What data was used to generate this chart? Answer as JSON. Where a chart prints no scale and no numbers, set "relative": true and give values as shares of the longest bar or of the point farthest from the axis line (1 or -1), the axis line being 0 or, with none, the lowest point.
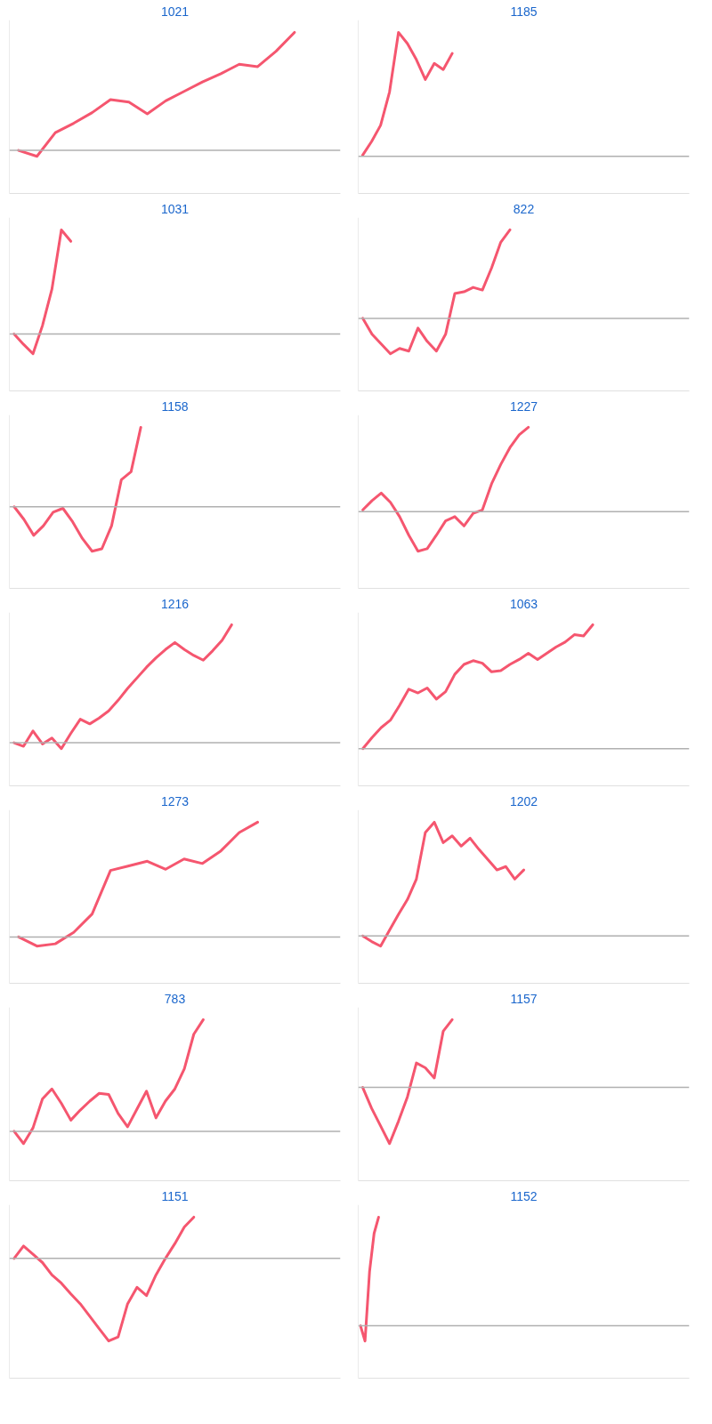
{
  "chart_data": [
    {
      "type": "line",
      "title": "1021",
      "relative": true,
      "color": "#f5566f",
      "categories": [
        null,
        null,
        null,
        null,
        null,
        null,
        null,
        null,
        null,
        null,
        null,
        null,
        null,
        null,
        null,
        null,
        null,
        null
      ],
      "values": [
        0,
        -0.05,
        0.15,
        0.23,
        0.32,
        0.43,
        0.41,
        0.31,
        0.42,
        0.5,
        0.58,
        0.65,
        0.73,
        0.71,
        0.84,
        1.0,
        null,
        null
      ]
    },
    {
      "type": "line",
      "title": "1185",
      "relative": true,
      "color": "#f5566f",
      "categories": [
        null,
        null,
        null,
        null,
        null,
        null,
        null,
        null,
        null,
        null,
        null,
        null,
        null,
        null,
        null,
        null,
        null,
        null,
        null,
        null,
        null,
        null,
        null,
        null,
        null,
        null,
        null,
        null,
        null,
        null,
        null,
        null,
        null,
        null,
        null,
        null,
        null
      ],
      "values": [
        0.01,
        0.12,
        0.25,
        0.52,
        1.0,
        0.91,
        0.78,
        0.62,
        0.75,
        0.7,
        0.83,
        null,
        null,
        null,
        null,
        null,
        null,
        null,
        null,
        null,
        null,
        null,
        null,
        null,
        null,
        null,
        null,
        null,
        null,
        null,
        null,
        null,
        null,
        null,
        null,
        null,
        null
      ]
    },
    {
      "type": "line",
      "title": "1031",
      "relative": true,
      "color": "#f5566f",
      "categories": [
        null,
        null,
        null,
        null,
        null,
        null,
        null,
        null,
        null,
        null,
        null,
        null,
        null,
        null,
        null,
        null,
        null,
        null,
        null,
        null,
        null,
        null,
        null,
        null,
        null,
        null,
        null,
        null,
        null,
        null,
        null,
        null,
        null,
        null,
        null
      ],
      "values": [
        0,
        -0.1,
        -0.19,
        0.08,
        0.43,
        1.0,
        0.89,
        null,
        null,
        null,
        null,
        null,
        null,
        null,
        null,
        null,
        null,
        null,
        null,
        null,
        null,
        null,
        null,
        null,
        null,
        null,
        null,
        null,
        null,
        null,
        null,
        null,
        null,
        null,
        null
      ]
    },
    {
      "type": "line",
      "title": "822",
      "relative": true,
      "color": "#f5566f",
      "categories": [
        null,
        null,
        null,
        null,
        null,
        null,
        null,
        null,
        null,
        null,
        null,
        null,
        null,
        null,
        null,
        null,
        null,
        null,
        null,
        null,
        null,
        null,
        null,
        null,
        null,
        null,
        null,
        null,
        null,
        null,
        null,
        null,
        null,
        null,
        null,
        null
      ],
      "values": [
        0,
        -0.18,
        -0.29,
        -0.4,
        -0.34,
        -0.37,
        -0.11,
        -0.26,
        -0.37,
        -0.18,
        0.28,
        0.3,
        0.35,
        0.32,
        0.57,
        0.86,
        1.0,
        null,
        null,
        null,
        null,
        null,
        null,
        null,
        null,
        null,
        null,
        null,
        null,
        null,
        null,
        null,
        null,
        null,
        null,
        null
      ]
    },
    {
      "type": "line",
      "title": "1158",
      "relative": true,
      "color": "#f5566f",
      "categories": [
        null,
        null,
        null,
        null,
        null,
        null,
        null,
        null,
        null,
        null,
        null,
        null,
        null,
        null,
        null,
        null,
        null,
        null,
        null,
        null,
        null,
        null,
        null,
        null,
        null,
        null,
        null,
        null,
        null,
        null,
        null,
        null,
        null,
        null
      ],
      "values": [
        0,
        -0.16,
        -0.36,
        -0.24,
        -0.07,
        -0.02,
        -0.19,
        -0.4,
        -0.56,
        -0.53,
        -0.24,
        0.34,
        0.44,
        1.0,
        null,
        null,
        null,
        null,
        null,
        null,
        null,
        null,
        null,
        null,
        null,
        null,
        null,
        null,
        null,
        null,
        null,
        null,
        null,
        null
      ]
    },
    {
      "type": "line",
      "title": "1227",
      "relative": true,
      "color": "#f5566f",
      "categories": [
        null,
        null,
        null,
        null,
        null,
        null,
        null,
        null,
        null,
        null,
        null,
        null,
        null,
        null,
        null,
        null,
        null,
        null,
        null,
        null,
        null,
        null,
        null,
        null,
        null,
        null,
        null,
        null,
        null,
        null,
        null,
        null,
        null,
        null,
        null,
        null
      ],
      "values": [
        0.02,
        0.13,
        0.22,
        0.11,
        -0.06,
        -0.28,
        -0.47,
        -0.44,
        -0.28,
        -0.11,
        -0.06,
        -0.17,
        -0.02,
        0.02,
        0.33,
        0.56,
        0.76,
        0.91,
        1.0,
        null,
        null,
        null,
        null,
        null,
        null,
        null,
        null,
        null,
        null,
        null,
        null,
        null,
        null,
        null,
        null,
        null
      ]
    },
    {
      "type": "line",
      "title": "1216",
      "relative": true,
      "color": "#f5566f",
      "categories": [
        null,
        null,
        null,
        null,
        null,
        null,
        null,
        null,
        null,
        null,
        null,
        null,
        null,
        null,
        null,
        null,
        null,
        null,
        null,
        null,
        null,
        null,
        null,
        null,
        null,
        null,
        null,
        null,
        null,
        null,
        null,
        null,
        null,
        null,
        null
      ],
      "values": [
        0,
        -0.03,
        0.1,
        -0.01,
        0.04,
        -0.05,
        0.08,
        0.2,
        0.16,
        0.21,
        0.27,
        0.36,
        0.46,
        0.55,
        0.64,
        0.72,
        0.79,
        0.85,
        0.79,
        0.74,
        0.7,
        0.78,
        0.87,
        1.0,
        null,
        null,
        null,
        null,
        null,
        null,
        null,
        null,
        null,
        null,
        null
      ]
    },
    {
      "type": "line",
      "title": "1063",
      "relative": true,
      "color": "#f5566f",
      "categories": [
        null,
        null,
        null,
        null,
        null,
        null,
        null,
        null,
        null,
        null,
        null,
        null,
        null,
        null,
        null,
        null,
        null,
        null,
        null,
        null,
        null,
        null,
        null,
        null,
        null,
        null,
        null,
        null,
        null,
        null,
        null,
        null,
        null,
        null,
        null,
        null
      ],
      "values": [
        0,
        0.09,
        0.17,
        0.23,
        0.35,
        0.48,
        0.45,
        0.49,
        0.4,
        0.46,
        0.6,
        0.68,
        0.71,
        0.69,
        0.62,
        0.63,
        0.68,
        0.72,
        0.77,
        0.72,
        0.77,
        0.82,
        0.86,
        0.92,
        0.91,
        1.0,
        null,
        null,
        null,
        null,
        null,
        null,
        null,
        null,
        null,
        null
      ]
    },
    {
      "type": "line",
      "title": "1273",
      "relative": true,
      "color": "#f5566f",
      "categories": [
        null,
        null,
        null,
        null,
        null,
        null,
        null,
        null,
        null,
        null,
        null,
        null,
        null,
        null,
        null,
        null,
        null,
        null
      ],
      "values": [
        0,
        -0.08,
        -0.06,
        0.04,
        0.2,
        0.58,
        0.62,
        0.66,
        0.59,
        0.68,
        0.64,
        0.75,
        0.91,
        1.0,
        null,
        null,
        null,
        null
      ]
    },
    {
      "type": "line",
      "title": "1202",
      "relative": true,
      "color": "#f5566f",
      "categories": [
        null,
        null,
        null,
        null,
        null,
        null,
        null,
        null,
        null,
        null,
        null,
        null,
        null,
        null,
        null,
        null,
        null,
        null,
        null,
        null,
        null,
        null,
        null,
        null,
        null,
        null,
        null,
        null,
        null,
        null,
        null,
        null,
        null,
        null,
        null,
        null,
        null
      ],
      "values": [
        0,
        -0.05,
        -0.09,
        0.05,
        0.19,
        0.32,
        0.5,
        0.91,
        1.0,
        0.82,
        0.88,
        0.79,
        0.86,
        0.76,
        0.67,
        0.58,
        0.61,
        0.5,
        0.58,
        null,
        null,
        null,
        null,
        null,
        null,
        null,
        null,
        null,
        null,
        null,
        null,
        null,
        null,
        null,
        null,
        null,
        null
      ]
    },
    {
      "type": "line",
      "title": "783",
      "relative": true,
      "color": "#f5566f",
      "categories": [
        null,
        null,
        null,
        null,
        null,
        null,
        null,
        null,
        null,
        null,
        null,
        null,
        null,
        null,
        null,
        null,
        null,
        null,
        null,
        null,
        null,
        null,
        null,
        null,
        null,
        null,
        null,
        null,
        null,
        null,
        null,
        null,
        null,
        null,
        null
      ],
      "values": [
        0,
        -0.11,
        0.03,
        0.29,
        0.38,
        0.25,
        0.1,
        0.19,
        0.27,
        0.34,
        0.33,
        0.16,
        0.04,
        0.2,
        0.36,
        0.12,
        0.27,
        0.38,
        0.56,
        0.87,
        1.0,
        null,
        null,
        null,
        null,
        null,
        null,
        null,
        null,
        null,
        null,
        null,
        null,
        null,
        null
      ]
    },
    {
      "type": "line",
      "title": "1157",
      "relative": true,
      "color": "#f5566f",
      "categories": [
        null,
        null,
        null,
        null,
        null,
        null,
        null,
        null,
        null,
        null,
        null,
        null,
        null,
        null,
        null,
        null,
        null,
        null,
        null,
        null,
        null,
        null,
        null,
        null,
        null,
        null,
        null,
        null,
        null,
        null,
        null,
        null,
        null,
        null,
        null,
        null,
        null
      ],
      "values": [
        0,
        -0.31,
        -0.57,
        -0.83,
        -0.5,
        -0.14,
        0.36,
        0.29,
        0.14,
        0.83,
        1.0,
        null,
        null,
        null,
        null,
        null,
        null,
        null,
        null,
        null,
        null,
        null,
        null,
        null,
        null,
        null,
        null,
        null,
        null,
        null,
        null,
        null,
        null,
        null,
        null,
        null,
        null
      ]
    },
    {
      "type": "line",
      "title": "1151",
      "relative": true,
      "color": "#f5566f",
      "categories": [
        null,
        null,
        null,
        null,
        null,
        null,
        null,
        null,
        null,
        null,
        null,
        null,
        null,
        null,
        null,
        null,
        null,
        null,
        null,
        null,
        null,
        null,
        null,
        null,
        null,
        null,
        null,
        null,
        null,
        null,
        null,
        null,
        null,
        null,
        null
      ],
      "values": [
        0,
        0.15,
        0.05,
        -0.05,
        -0.2,
        -0.3,
        -0.43,
        -0.55,
        -0.7,
        -0.85,
        -1.0,
        -0.95,
        -0.55,
        -0.35,
        -0.45,
        -0.2,
        0,
        0.18,
        0.38,
        0.5,
        null,
        null,
        null,
        null,
        null,
        null,
        null,
        null,
        null,
        null,
        null,
        null,
        null,
        null,
        null
      ]
    },
    {
      "type": "line",
      "title": "1152",
      "relative": true,
      "color": "#f5566f",
      "categories": [
        null,
        null,
        null,
        null,
        null,
        null,
        null,
        null,
        null,
        null,
        null,
        null,
        null,
        null,
        null,
        null,
        null,
        null,
        null,
        null,
        null,
        null,
        null,
        null,
        null,
        null,
        null,
        null,
        null,
        null,
        null,
        null,
        null,
        null,
        null,
        null,
        null,
        null,
        null,
        null,
        null,
        null,
        null,
        null,
        null,
        null,
        null,
        null,
        null,
        null,
        null,
        null,
        null,
        null,
        null,
        null,
        null,
        null,
        null,
        null,
        null,
        null,
        null,
        null,
        null,
        null,
        null,
        null,
        null,
        null,
        null,
        null,
        null
      ],
      "values": [
        0,
        -0.14,
        0.5,
        0.85,
        1.0,
        null,
        null,
        null,
        null,
        null,
        null,
        null,
        null,
        null,
        null,
        null,
        null,
        null,
        null,
        null,
        null,
        null,
        null,
        null,
        null,
        null,
        null,
        null,
        null,
        null,
        null,
        null,
        null,
        null,
        null,
        null,
        null,
        null,
        null,
        null,
        null,
        null,
        null,
        null,
        null,
        null,
        null,
        null,
        null,
        null,
        null,
        null,
        null,
        null,
        null,
        null,
        null,
        null,
        null,
        null,
        null,
        null,
        null,
        null,
        null,
        null,
        null,
        null,
        null,
        null,
        null,
        null,
        null
      ]
    }
  ]
}
